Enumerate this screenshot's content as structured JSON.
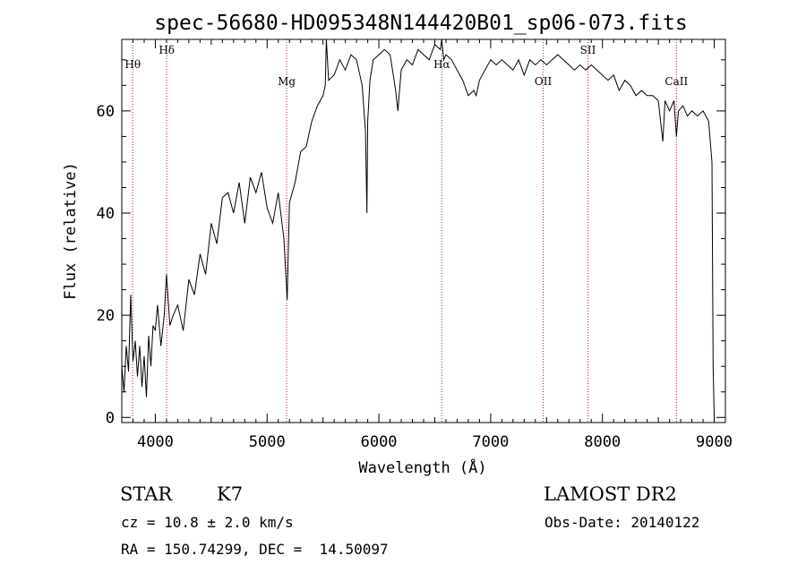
{
  "chart_data": {
    "type": "line",
    "title": "spec-56680-HD095348N144420B01_sp06-073.fits",
    "xlabel": "Wavelength (Å)",
    "ylabel": "Flux (relative)",
    "xlim": [
      3700,
      9100
    ],
    "ylim": [
      -1,
      74
    ],
    "xticks": [
      4000,
      5000,
      6000,
      7000,
      8000,
      9000
    ],
    "yticks": [
      0,
      20,
      40,
      60
    ],
    "grid": false,
    "series": [
      {
        "x": [
          3700,
          3720,
          3740,
          3760,
          3780,
          3800,
          3820,
          3840,
          3860,
          3880,
          3900,
          3920,
          3940,
          3960,
          3980,
          4000,
          4020,
          4050,
          4080,
          4100,
          4130,
          4160,
          4200,
          4250,
          4300,
          4350,
          4400,
          4450,
          4500,
          4550,
          4600,
          4650,
          4700,
          4750,
          4800,
          4850,
          4900,
          4950,
          5000,
          5050,
          5100,
          5150,
          5180,
          5200,
          5250,
          5300,
          5350,
          5400,
          5450,
          5500,
          5520,
          5530,
          5550,
          5600,
          5650,
          5700,
          5750,
          5800,
          5850,
          5880,
          5893,
          5900,
          5920,
          5950,
          6000,
          6050,
          6100,
          6150,
          6170,
          6200,
          6250,
          6300,
          6350,
          6400,
          6450,
          6500,
          6550,
          6563,
          6580,
          6600,
          6650,
          6700,
          6750,
          6800,
          6850,
          6870,
          6900,
          6950,
          7000,
          7050,
          7100,
          7150,
          7200,
          7250,
          7300,
          7350,
          7400,
          7450,
          7500,
          7550,
          7600,
          7650,
          7700,
          7750,
          7800,
          7850,
          7900,
          7950,
          8000,
          8050,
          8100,
          8150,
          8200,
          8250,
          8300,
          8350,
          8400,
          8450,
          8500,
          8540,
          8560,
          8600,
          8640,
          8662,
          8680,
          8720,
          8760,
          8800,
          8850,
          8900,
          8950,
          8980,
          8990,
          9000
        ],
        "y": [
          10,
          5,
          14,
          9,
          24,
          11,
          15,
          8,
          14,
          6,
          12,
          4,
          16,
          10,
          18,
          17,
          22,
          14,
          20,
          28,
          18,
          20,
          22,
          17,
          27,
          24,
          32,
          28,
          38,
          34,
          43,
          44,
          40,
          46,
          38,
          47,
          44,
          48,
          41,
          38,
          44,
          35,
          23,
          42,
          46,
          52,
          53,
          58,
          61,
          63,
          65,
          74,
          66,
          67,
          70,
          68,
          71,
          70,
          65,
          56,
          40,
          58,
          66,
          70,
          71,
          72,
          71,
          64,
          60,
          68,
          70,
          69,
          72,
          71,
          70,
          73,
          72,
          74,
          70,
          71,
          70,
          68,
          66,
          63,
          64,
          63,
          66,
          68,
          70,
          69,
          70,
          69,
          68,
          70,
          67,
          70,
          69,
          70,
          69,
          70,
          71,
          70,
          69,
          68,
          69,
          68,
          69,
          68,
          67,
          66,
          67,
          64,
          66,
          65,
          63,
          64,
          63,
          63,
          62,
          54,
          62,
          60,
          62,
          55,
          60,
          61,
          59,
          60,
          59,
          60,
          58,
          50,
          10,
          0
        ]
      }
    ],
    "line_markers": [
      {
        "label": "Hθ",
        "x": 3798
      },
      {
        "label": "Hδ",
        "x": 4102
      },
      {
        "label": "Mg",
        "x": 5175
      },
      {
        "label": "Hα",
        "x": 6563
      },
      {
        "label": "OII",
        "x": 7470
      },
      {
        "label": "SII",
        "x": 7870
      },
      {
        "label": "CaII",
        "x": 8662
      }
    ]
  },
  "info": {
    "object_type": "STAR",
    "subclass": "K7",
    "survey": "LAMOST DR2",
    "redshift": "cz = 10.8 ± 2.0 km/s",
    "obs_date": "Obs-Date: 20140122",
    "coords": "RA = 150.74299, DEC =  14.50097"
  }
}
